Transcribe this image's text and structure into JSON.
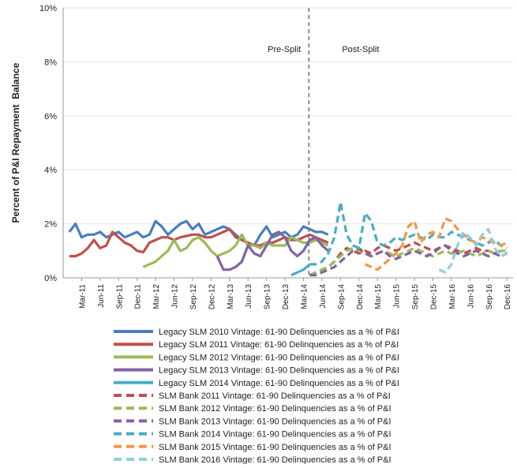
{
  "chart_data": {
    "type": "line",
    "ylabel": "Percent of P&I Repayment  Balance",
    "ylim": [
      0,
      10
    ],
    "yticks": [
      "0%",
      "2%",
      "4%",
      "6%",
      "8%",
      "10%"
    ],
    "xtick_labels": [
      "Mar-11",
      "Jun-11",
      "Sep-11",
      "Dec-11",
      "Mar-12",
      "Jun-12",
      "Sep-12",
      "Dec-12",
      "Mar-13",
      "Jun-13",
      "Sep-13",
      "Dec-13",
      "Mar-14",
      "Jun-14",
      "Sep-14",
      "Dec-14",
      "Mar-15",
      "Jun-15",
      "Sep-15",
      "Dec-15",
      "Mar-16",
      "Jun-16",
      "Sep-16",
      "Dec-16"
    ],
    "annotations": {
      "pre_split": "Pre-Split",
      "post_split": "Post-Split"
    },
    "split_month": "2014-04",
    "series": [
      {
        "name": "Legacy SLM 2010 Vintage: 61-90 Delinquencies as a % of P&I",
        "color": "#4a7ebf",
        "dash": false,
        "start": "2011-01",
        "values": [
          1.7,
          2.0,
          1.5,
          1.6,
          1.6,
          1.7,
          1.5,
          1.6,
          1.7,
          1.5,
          1.6,
          1.7,
          1.5,
          1.6,
          2.1,
          1.9,
          1.6,
          1.8,
          2.0,
          2.1,
          1.8,
          2.0,
          1.6,
          1.7,
          1.8,
          1.9,
          1.8,
          1.6,
          1.4,
          1.3,
          1.2,
          1.6,
          1.9,
          1.5,
          1.6,
          1.7,
          1.5,
          1.6,
          1.9,
          1.8,
          1.7,
          1.7,
          1.6
        ]
      },
      {
        "name": "Legacy SLM 2011 Vintage: 61-90 Delinquencies as a % of P&I",
        "color": "#c0504d",
        "dash": false,
        "start": "2011-01",
        "values": [
          0.8,
          0.8,
          0.9,
          1.1,
          1.4,
          1.1,
          1.2,
          1.7,
          1.5,
          1.3,
          1.2,
          1.0,
          0.95,
          1.3,
          1.4,
          1.5,
          1.5,
          1.4,
          1.5,
          1.55,
          1.6,
          1.6,
          1.5,
          1.5,
          1.6,
          1.7,
          1.8,
          1.5,
          1.4,
          1.3,
          1.2,
          1.2,
          1.3,
          1.3,
          1.4,
          1.5,
          1.4,
          1.4,
          1.5,
          1.6,
          1.5,
          1.4,
          1.3
        ]
      },
      {
        "name": "Legacy SLM 2012 Vintage: 61-90 Delinquencies as a % of P&I",
        "color": "#9bbb59",
        "dash": false,
        "start": "2012-01",
        "values": [
          0.4,
          0.5,
          0.6,
          0.8,
          1.0,
          1.4,
          1.0,
          1.1,
          1.4,
          1.5,
          1.3,
          1.0,
          0.8,
          0.9,
          1.0,
          1.2,
          1.6,
          1.2,
          1.2,
          1.1,
          1.3,
          1.2,
          1.2,
          1.2,
          1.5,
          1.4,
          1.3,
          1.3,
          1.4,
          1.3,
          1.2
        ]
      },
      {
        "name": "Legacy SLM 2013 Vintage: 61-90 Delinquencies as a % of P&I",
        "color": "#8064a2",
        "dash": false,
        "start": "2013-01",
        "values": [
          0.8,
          0.3,
          0.3,
          0.4,
          0.6,
          1.2,
          0.9,
          0.8,
          1.2,
          1.6,
          1.7,
          1.5,
          1.0,
          0.8,
          1.0,
          1.4,
          1.5,
          1.2,
          1.0
        ]
      },
      {
        "name": "Legacy SLM 2014 Vintage: 61-90 Delinquencies as a % of P&I",
        "color": "#4bacc6",
        "dash": false,
        "start": "2014-01",
        "values": [
          0.1,
          0.2,
          0.3,
          0.5
        ]
      },
      {
        "name": "SLM Bank 2011 Vintage: 61-90 Delinquencies as a % of P&I",
        "color": "#c0504d",
        "dash": true,
        "start": "2014-04",
        "values": [
          0.1,
          0.2,
          0.3,
          0.4,
          0.6,
          0.9,
          1.1,
          1.0,
          0.9,
          1.0,
          0.9,
          1.1,
          1.2,
          1.1,
          1.0,
          1.1,
          1.2,
          1.3,
          1.2,
          1.1,
          1.0,
          1.1,
          1.2,
          1.1,
          1.0,
          0.9,
          1.0,
          1.1,
          1.0,
          1.0,
          0.9,
          1.0,
          0.9
        ]
      },
      {
        "name": "SLM Bank 2012 Vintage: 61-90 Delinquencies as a % of P&I",
        "color": "#9bbb59",
        "dash": true,
        "start": "2014-04",
        "values": [
          0.1,
          0.2,
          0.3,
          0.4,
          0.6,
          0.8,
          1.0,
          1.1,
          1.0,
          0.9,
          0.8,
          0.9,
          1.0,
          0.9,
          0.8,
          0.9,
          1.0,
          1.1,
          1.0,
          0.9,
          0.8,
          0.9,
          1.0,
          0.9,
          0.9,
          1.0,
          0.9,
          0.8,
          0.9,
          1.0,
          0.9,
          1.0,
          1.0
        ]
      },
      {
        "name": "SLM Bank 2013 Vintage: 61-90 Delinquencies as a % of P&I",
        "color": "#8064a2",
        "dash": true,
        "start": "2014-04",
        "values": [
          0.1,
          0.1,
          0.2,
          0.3,
          0.4,
          0.6,
          0.8,
          1.0,
          1.1,
          0.9,
          0.8,
          0.9,
          1.0,
          0.8,
          0.7,
          0.8,
          0.9,
          1.0,
          0.9,
          0.8,
          0.9,
          1.1,
          1.2,
          1.0,
          0.9,
          0.8,
          0.9,
          1.0,
          0.9,
          0.8,
          0.9,
          0.8,
          0.9
        ]
      },
      {
        "name": "SLM Bank 2014 Vintage: 61-90 Delinquencies as a % of P&I",
        "color": "#4bacc6",
        "dash": true,
        "start": "2014-04",
        "values": [
          0.5,
          0.5,
          0.6,
          0.9,
          1.5,
          2.8,
          1.6,
          1.2,
          1.1,
          2.4,
          2.1,
          1.3,
          1.2,
          1.3,
          1.5,
          1.4,
          1.5,
          1.6,
          1.5,
          1.4,
          1.6,
          1.5,
          1.5,
          1.7,
          1.6,
          1.5,
          1.4,
          1.3,
          1.2,
          1.3,
          1.4,
          1.2,
          1.1
        ]
      },
      {
        "name": "SLM Bank 2015 Vintage: 61-90 Delinquencies as a % of P&I",
        "color": "#f79646",
        "dash": true,
        "start": "2015-01",
        "values": [
          0.5,
          0.4,
          0.3,
          0.5,
          0.7,
          0.9,
          1.2,
          1.9,
          2.1,
          1.3,
          1.6,
          1.7,
          1.5,
          2.2,
          2.1,
          1.8,
          1.6,
          1.4,
          1.3,
          1.5,
          1.4,
          1.3,
          1.2,
          1.3
        ]
      },
      {
        "name": "SLM Bank 2016 Vintage: 61-90 Delinquencies as a % of P&I",
        "color": "#93cddd",
        "dash": true,
        "start": "2016-01",
        "values": [
          0.3,
          0.2,
          0.5,
          1.2,
          1.7,
          1.5,
          1.2,
          1.6,
          1.8,
          1.1,
          0.8,
          0.9
        ]
      }
    ]
  }
}
